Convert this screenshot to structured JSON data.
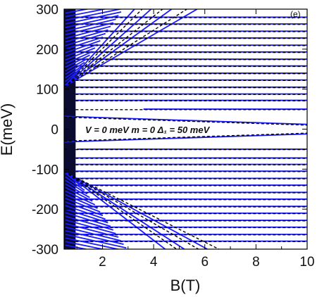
{
  "chart_data": {
    "type": "line",
    "title": "",
    "panel_label": "(e)",
    "xlabel": "B(T)",
    "ylabel": "E(meV)",
    "xlim": [
      0.5,
      10
    ],
    "ylim": [
      -300,
      300
    ],
    "xticks": [
      2,
      4,
      6,
      8,
      10
    ],
    "yticks": [
      -300,
      -200,
      -100,
      0,
      100,
      200,
      300
    ],
    "grid": false,
    "annotation": "V = 0 meV  m = 0   Δ₁ = 50 meV",
    "colors": {
      "solid": "#1a1aff",
      "dashed": "#000000",
      "axes": "#000000"
    },
    "series": [
      {
        "style": "solid",
        "flat_levels_meV": [
          -280,
          -263,
          -245,
          -228,
          -210,
          -193,
          -175,
          -158,
          -140,
          -123,
          -105,
          -88,
          -72,
          -50,
          50,
          72,
          88,
          105,
          123,
          140,
          158,
          175,
          193,
          210,
          228,
          245,
          263,
          280
        ],
        "conduction_fan": {
          "points": [
            [
              0.5,
              106
            ],
            [
              10,
              300
            ]
          ],
          "lines": [
            [
              [
                0.5,
                106
              ],
              [
                3.25,
                300
              ]
            ],
            [
              [
                0.5,
                106
              ],
              [
                3.9,
                300
              ]
            ],
            [
              [
                0.5,
                106
              ],
              [
                4.7,
                300
              ]
            ],
            [
              [
                0.5,
                106
              ],
              [
                5.7,
                300
              ]
            ]
          ]
        },
        "valence_fan": {
          "lines": [
            [
              [
                0.5,
                -106
              ],
              [
                4.45,
                -300
              ]
            ],
            [
              [
                0.5,
                -106
              ],
              [
                5.2,
                -300
              ]
            ],
            [
              [
                0.5,
                -106
              ],
              [
                6.1,
                -300
              ]
            ]
          ]
        },
        "inner_branches": [
          {
            "x": [
              0.5,
              10
            ],
            "y": [
              -32,
              -12
            ]
          },
          {
            "x": [
              0.5,
              10
            ],
            "y": [
              32,
              12
            ]
          }
        ],
        "partial_levels": [
          {
            "level": 50,
            "x": [
              3.6,
              10
            ]
          },
          {
            "level": -50,
            "x": [
              1.0,
              10
            ]
          }
        ]
      },
      {
        "style": "dashed",
        "flat_levels_meV": [
          -280,
          -263,
          -245,
          -228,
          -210,
          -193,
          -175,
          -158,
          -140,
          -123,
          -105,
          -88,
          -72,
          -50,
          50,
          72,
          88,
          105,
          123,
          140,
          158,
          175,
          193,
          210,
          228,
          245,
          263,
          280
        ],
        "conduction_fan": {
          "lines": [
            [
              [
                0.5,
                106
              ],
              [
                3.55,
                300
              ]
            ],
            [
              [
                0.5,
                106
              ],
              [
                4.35,
                300
              ]
            ],
            [
              [
                0.5,
                106
              ],
              [
                5.3,
                300
              ]
            ]
          ]
        },
        "valence_fan": {
          "lines": [
            [
              [
                0.5,
                -106
              ],
              [
                4.9,
                -300
              ]
            ],
            [
              [
                0.5,
                -106
              ],
              [
                5.75,
                -300
              ]
            ],
            [
              [
                0.5,
                -106
              ],
              [
                6.55,
                -300
              ]
            ]
          ]
        },
        "inner_branches": [
          {
            "x": [
              0.5,
              10
            ],
            "y": [
              -30,
              -10
            ]
          },
          {
            "x": [
              0.5,
              10
            ],
            "y": [
              30,
              10
            ]
          }
        ]
      }
    ]
  }
}
